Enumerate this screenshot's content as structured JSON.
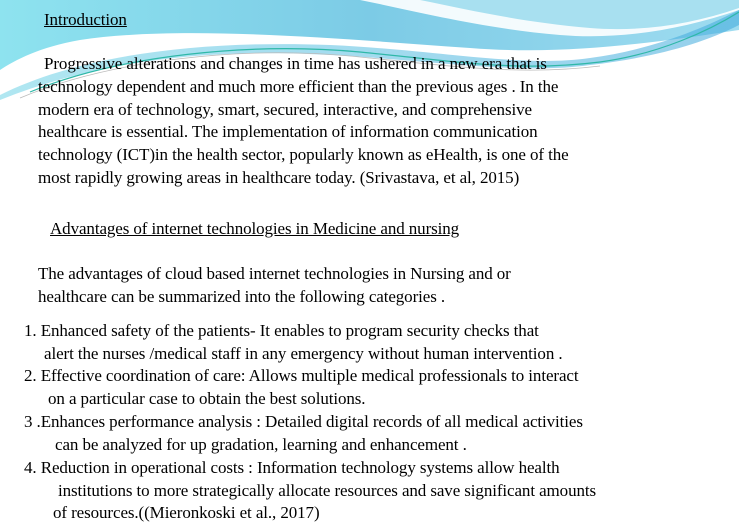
{
  "title": "Introduction",
  "intro_lines": [
    "Progressive alterations and changes in  time has ushered in a new era   that is",
    "technology dependent and much more efficient than the previous ages . In the",
    "modern era of technology, smart, secured, interactive, and comprehensive",
    "healthcare is essential. The implementation of information communication",
    "technology (ICT)in the health sector, popularly known as eHealth, is one of the",
    "most rapidly growing areas in healthcare today. (Srivastava, et al, 2015)"
  ],
  "subheading": "Advantages of  internet technologies  in Medicine and nursing ",
  "summary_lines": [
    "The advantages of  cloud based internet technologies in Nursing and or",
    "healthcare can be summarized into the following categories ."
  ],
  "list_lines": [
    "1.   Enhanced safety of the patients-  It enables to program security checks  that",
    "alert the nurses /medical staff in any emergency without human intervention .",
    "2.  Effective coordination of care: Allows multiple medical professionals to interact",
    "on a particular case to obtain the best solutions.",
    "3     .Enhances performance analysis :  Detailed digital records of all medical activities",
    "can be analyzed for up gradation, learning and enhancement .",
    "4.   Reduction in operational costs : Information technology systems allow health",
    "institutions to more strategically allocate resources and save significant amounts",
    "of  resources.((Mieronkoski et al., 2017)"
  ],
  "colors": {
    "wave_light": "#7fd6ea",
    "wave_dark": "#3aa6d6",
    "accent_line": "#2fb8a8"
  }
}
